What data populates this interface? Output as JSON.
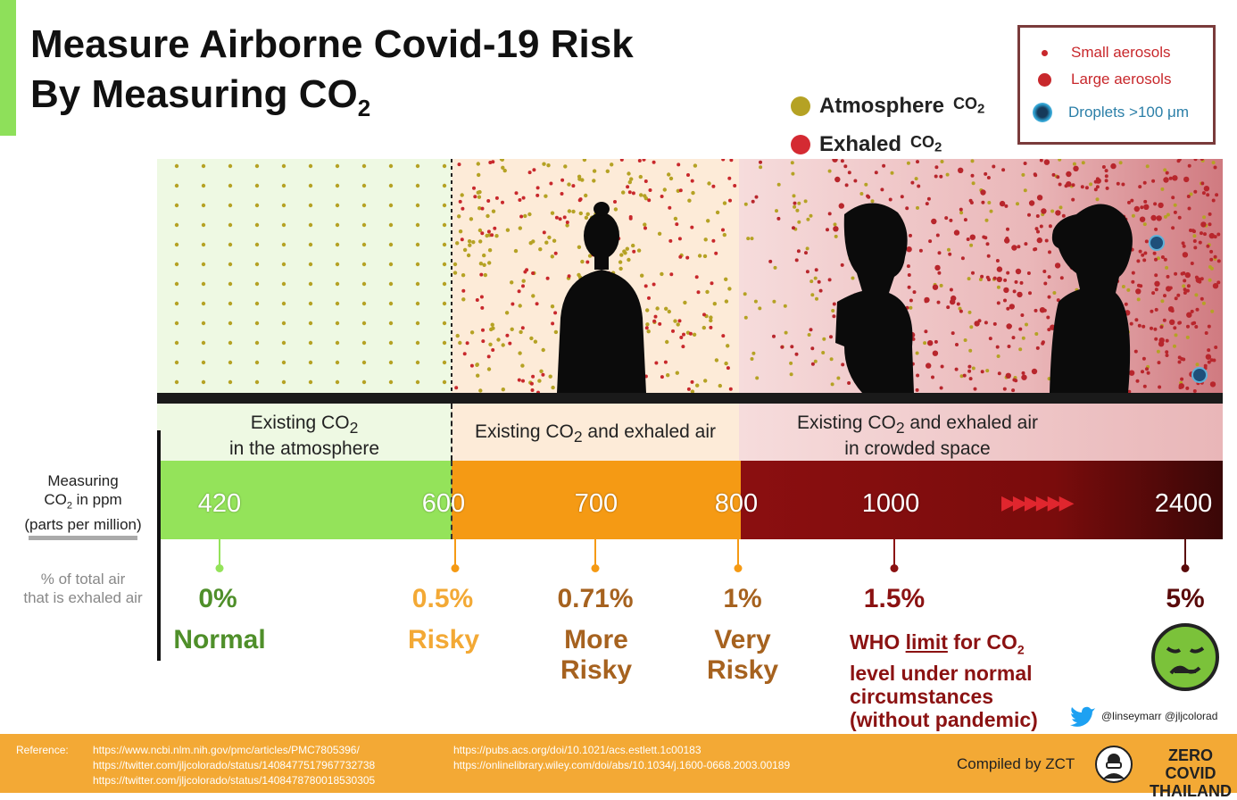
{
  "title": {
    "line1": "Measure Airborne Covid-19 Risk",
    "line2_prefix": "By Measuring CO",
    "line2_sub": "2"
  },
  "legend_gas": [
    {
      "label": "Atmosphere",
      "sub": "CO",
      "sub2": "2",
      "color": "#b5a224"
    },
    {
      "label": "Exhaled",
      "sub": "CO",
      "sub2": "2",
      "color": "#d42a32"
    }
  ],
  "legend_particles": [
    {
      "label": "Small aerosols",
      "color": "#c8282c"
    },
    {
      "label": "Large aerosols",
      "color": "#c8282c"
    },
    {
      "label": "Droplets >100 μm",
      "color": "#2b7fa8"
    }
  ],
  "zones": [
    {
      "line1": "Existing CO",
      "sub": "2",
      "line1b": "",
      "line2": "in the atmosphere"
    },
    {
      "line1": "Existing CO",
      "sub": "2",
      "line1b": " and exhaled air",
      "line2": ""
    },
    {
      "line1": "Existing CO",
      "sub": "2",
      "line1b": " and exhaled air",
      "line2": "in crowded space"
    }
  ],
  "measuring_label": {
    "line1": "Measuring",
    "line2a": "CO",
    "line2sub": "2",
    "line2b": " in ppm",
    "line3": "(parts per million)"
  },
  "exhaled_label": {
    "line1": "% of total air",
    "line2": "that is exhaled air"
  },
  "ppm_values": [
    "420",
    "600",
    "700",
    "800",
    "1000",
    "2400"
  ],
  "arrows": "▶▶▶▶▶▶",
  "levels": [
    {
      "pct": "0%",
      "risk": "Normal",
      "color": "#4f8f2a"
    },
    {
      "pct": "0.5%",
      "risk": "Risky",
      "color": "#f3a935"
    },
    {
      "pct": "0.71%",
      "risk": "More Risky",
      "color": "#a6621f"
    },
    {
      "pct": "1%",
      "risk": "Very Risky",
      "color": "#a6621f"
    },
    {
      "pct": "1.5%",
      "risk": "",
      "color": "#8b1212"
    },
    {
      "pct": "5%",
      "risk": "",
      "color": "#5a0a0a"
    }
  ],
  "who_note": {
    "prefix": "WHO ",
    "underlined": "limit",
    "mid": " for CO",
    "sub": "2",
    "line2": "level under normal",
    "line3": "circumstances",
    "line4": "(without pandemic)"
  },
  "twitter": "@linseymarr @jljcolorad",
  "footer": {
    "ref_label": "Reference:",
    "refs_col1": [
      "https://www.ncbi.nlm.nih.gov/pmc/articles/PMC7805396/",
      "https://twitter.com/jljcolorado/status/1408477517967732738",
      "https://twitter.com/jljcolorado/status/1408478780018530305"
    ],
    "refs_col2": [
      "https://pubs.acs.org/doi/10.1021/acs.estlett.1c00183",
      "https://onlinelibrary.wiley.com/doi/abs/10.1034/j.1600-0668.2003.00189"
    ],
    "compiled": "Compiled by ZCT",
    "brand1": "ZERO COVID",
    "brand2": "THAILAND"
  }
}
